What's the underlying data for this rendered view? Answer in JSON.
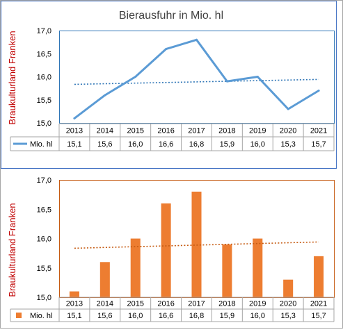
{
  "chart_data": [
    {
      "type": "line",
      "title": "Bierausfuhr in Mio. hl",
      "ylabel": "Braukulturland Franken",
      "xlabel": "",
      "categories": [
        "2013",
        "2014",
        "2015",
        "2016",
        "2017",
        "2018",
        "2019",
        "2020",
        "2021"
      ],
      "series": [
        {
          "name": "Mio. hl",
          "values": [
            15.1,
            15.6,
            16.0,
            16.6,
            16.8,
            15.9,
            16.0,
            15.3,
            15.7
          ],
          "color": "#5b9bd5"
        }
      ],
      "value_labels": [
        "15,1",
        "15,6",
        "16,0",
        "16,6",
        "16,8",
        "15,9",
        "16,0",
        "15,3",
        "15,7"
      ],
      "trendline": {
        "type": "linear",
        "style": "dotted",
        "color": "#2e75b6"
      },
      "ylim": [
        15.0,
        17.0
      ],
      "yticks": [
        "15,0",
        "15,5",
        "16,0",
        "16,5",
        "17,0"
      ],
      "grid": false,
      "legend": "data-table"
    },
    {
      "type": "bar",
      "title": "",
      "ylabel": "Braukulturland Franken",
      "xlabel": "",
      "categories": [
        "2013",
        "2014",
        "2015",
        "2016",
        "2017",
        "2018",
        "2019",
        "2020",
        "2021"
      ],
      "series": [
        {
          "name": "Mio. hl",
          "values": [
            15.1,
            15.6,
            16.0,
            16.6,
            16.8,
            15.9,
            16.0,
            15.3,
            15.7
          ],
          "color": "#ed7d31"
        }
      ],
      "value_labels": [
        "15,1",
        "15,6",
        "16,0",
        "16,6",
        "16,8",
        "15,9",
        "16,0",
        "15,3",
        "15,7"
      ],
      "trendline": {
        "type": "linear",
        "style": "dotted",
        "color": "#c55a11"
      },
      "ylim": [
        15.0,
        17.0
      ],
      "yticks": [
        "15,0",
        "15,5",
        "16,0",
        "16,5",
        "17,0"
      ],
      "grid": false,
      "legend": "data-table"
    }
  ]
}
